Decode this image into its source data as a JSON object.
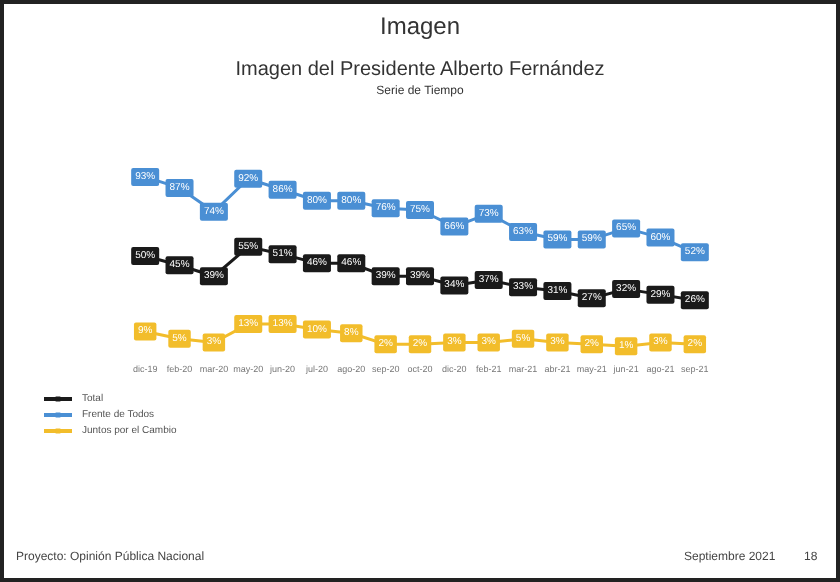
{
  "chart_data": {
    "type": "line",
    "title": "Imagen del Presidente Alberto Fernández",
    "subtitle": "Serie de Tiempo",
    "annotations": [
      "Imagen",
      "Proyecto: Opinión Pública Nacional",
      "Septiembre 2021",
      "18"
    ],
    "categories": [
      "dic-19",
      "feb-20",
      "mar-20",
      "may-20",
      "jun-20",
      "jul-20",
      "ago-20",
      "sep-20",
      "oct-20",
      "dic-20",
      "feb-21",
      "mar-21",
      "abr-21",
      "may-21",
      "jun-21",
      "ago-21",
      "sep-21"
    ],
    "series": [
      {
        "name": "Total",
        "color": "#1a1a1a",
        "values": [
          50,
          45,
          39,
          55,
          51,
          46,
          46,
          39,
          39,
          34,
          37,
          33,
          31,
          27,
          32,
          29,
          26
        ],
        "value_labels": [
          "50%",
          "45%",
          "39%",
          "55%",
          "51%",
          "46%",
          "46%",
          "39%",
          "39%",
          "34%",
          "37%",
          "33%",
          "31%",
          "27%",
          "32%",
          "29%",
          "26%"
        ]
      },
      {
        "name": "Frente de Todos",
        "color": "#4a8fd4",
        "values": [
          93,
          87,
          74,
          92,
          86,
          80,
          80,
          76,
          75,
          66,
          73,
          63,
          59,
          59,
          65,
          60,
          52
        ],
        "value_labels": [
          "93%",
          "87%",
          "74%",
          "92%",
          "86%",
          "80%",
          "80%",
          "76%",
          "75%",
          "66%",
          "73%",
          "63%",
          "59%",
          "59%",
          "65%",
          "60%",
          "52%"
        ]
      },
      {
        "name": "Juntos por el Cambio",
        "color": "#f2bd2b",
        "values": [
          9,
          5,
          3,
          13,
          13,
          10,
          8,
          2,
          2,
          3,
          3,
          5,
          3,
          2,
          1,
          3,
          2
        ],
        "value_labels": [
          "9%",
          "5%",
          "3%",
          "13%",
          "13%",
          "10%",
          "8%",
          "2%",
          "2%",
          "3%",
          "3%",
          "5%",
          "3%",
          "2%",
          "1%",
          "3%",
          "2%"
        ]
      }
    ],
    "legend": "bottom left",
    "grid": false,
    "marker": "square",
    "tick_labels": "x"
  }
}
